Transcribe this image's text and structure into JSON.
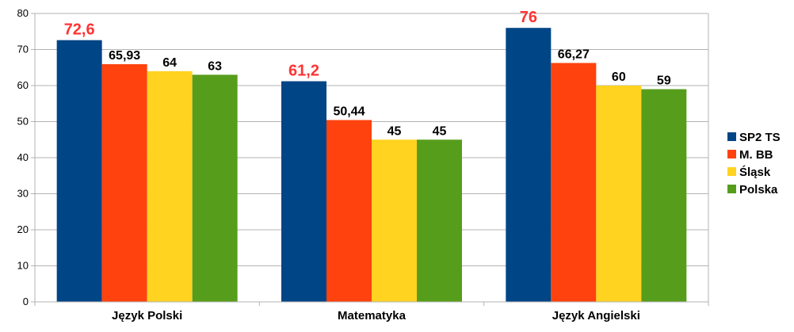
{
  "chart_data": {
    "type": "bar",
    "categories": [
      "Język Polski",
      "Matematyka",
      "Język Angielski"
    ],
    "series": [
      {
        "name": "SP2 TS",
        "color": "#004586",
        "values": [
          72.6,
          61.2,
          76
        ],
        "labels": [
          "72,6",
          "61,2",
          "76"
        ],
        "label_color": "#ff3333"
      },
      {
        "name": "M. BB",
        "color": "#ff420e",
        "values": [
          65.93,
          50.44,
          66.27
        ],
        "labels": [
          "65,93",
          "50,44",
          "66,27"
        ],
        "label_color": "#000000"
      },
      {
        "name": "Śląsk",
        "color": "#ffd320",
        "values": [
          64,
          45,
          60
        ],
        "labels": [
          "64",
          "45",
          "60"
        ],
        "label_color": "#000000"
      },
      {
        "name": "Polska",
        "color": "#579d1c",
        "values": [
          63,
          45,
          59
        ],
        "labels": [
          "63",
          "45",
          "59"
        ],
        "label_color": "#000000"
      }
    ],
    "ylim": [
      0,
      80
    ],
    "yticks": [
      0,
      10,
      20,
      30,
      40,
      50,
      60,
      70,
      80
    ],
    "grid": true,
    "legend": "right",
    "title": "",
    "xlabel": "",
    "ylabel": ""
  }
}
